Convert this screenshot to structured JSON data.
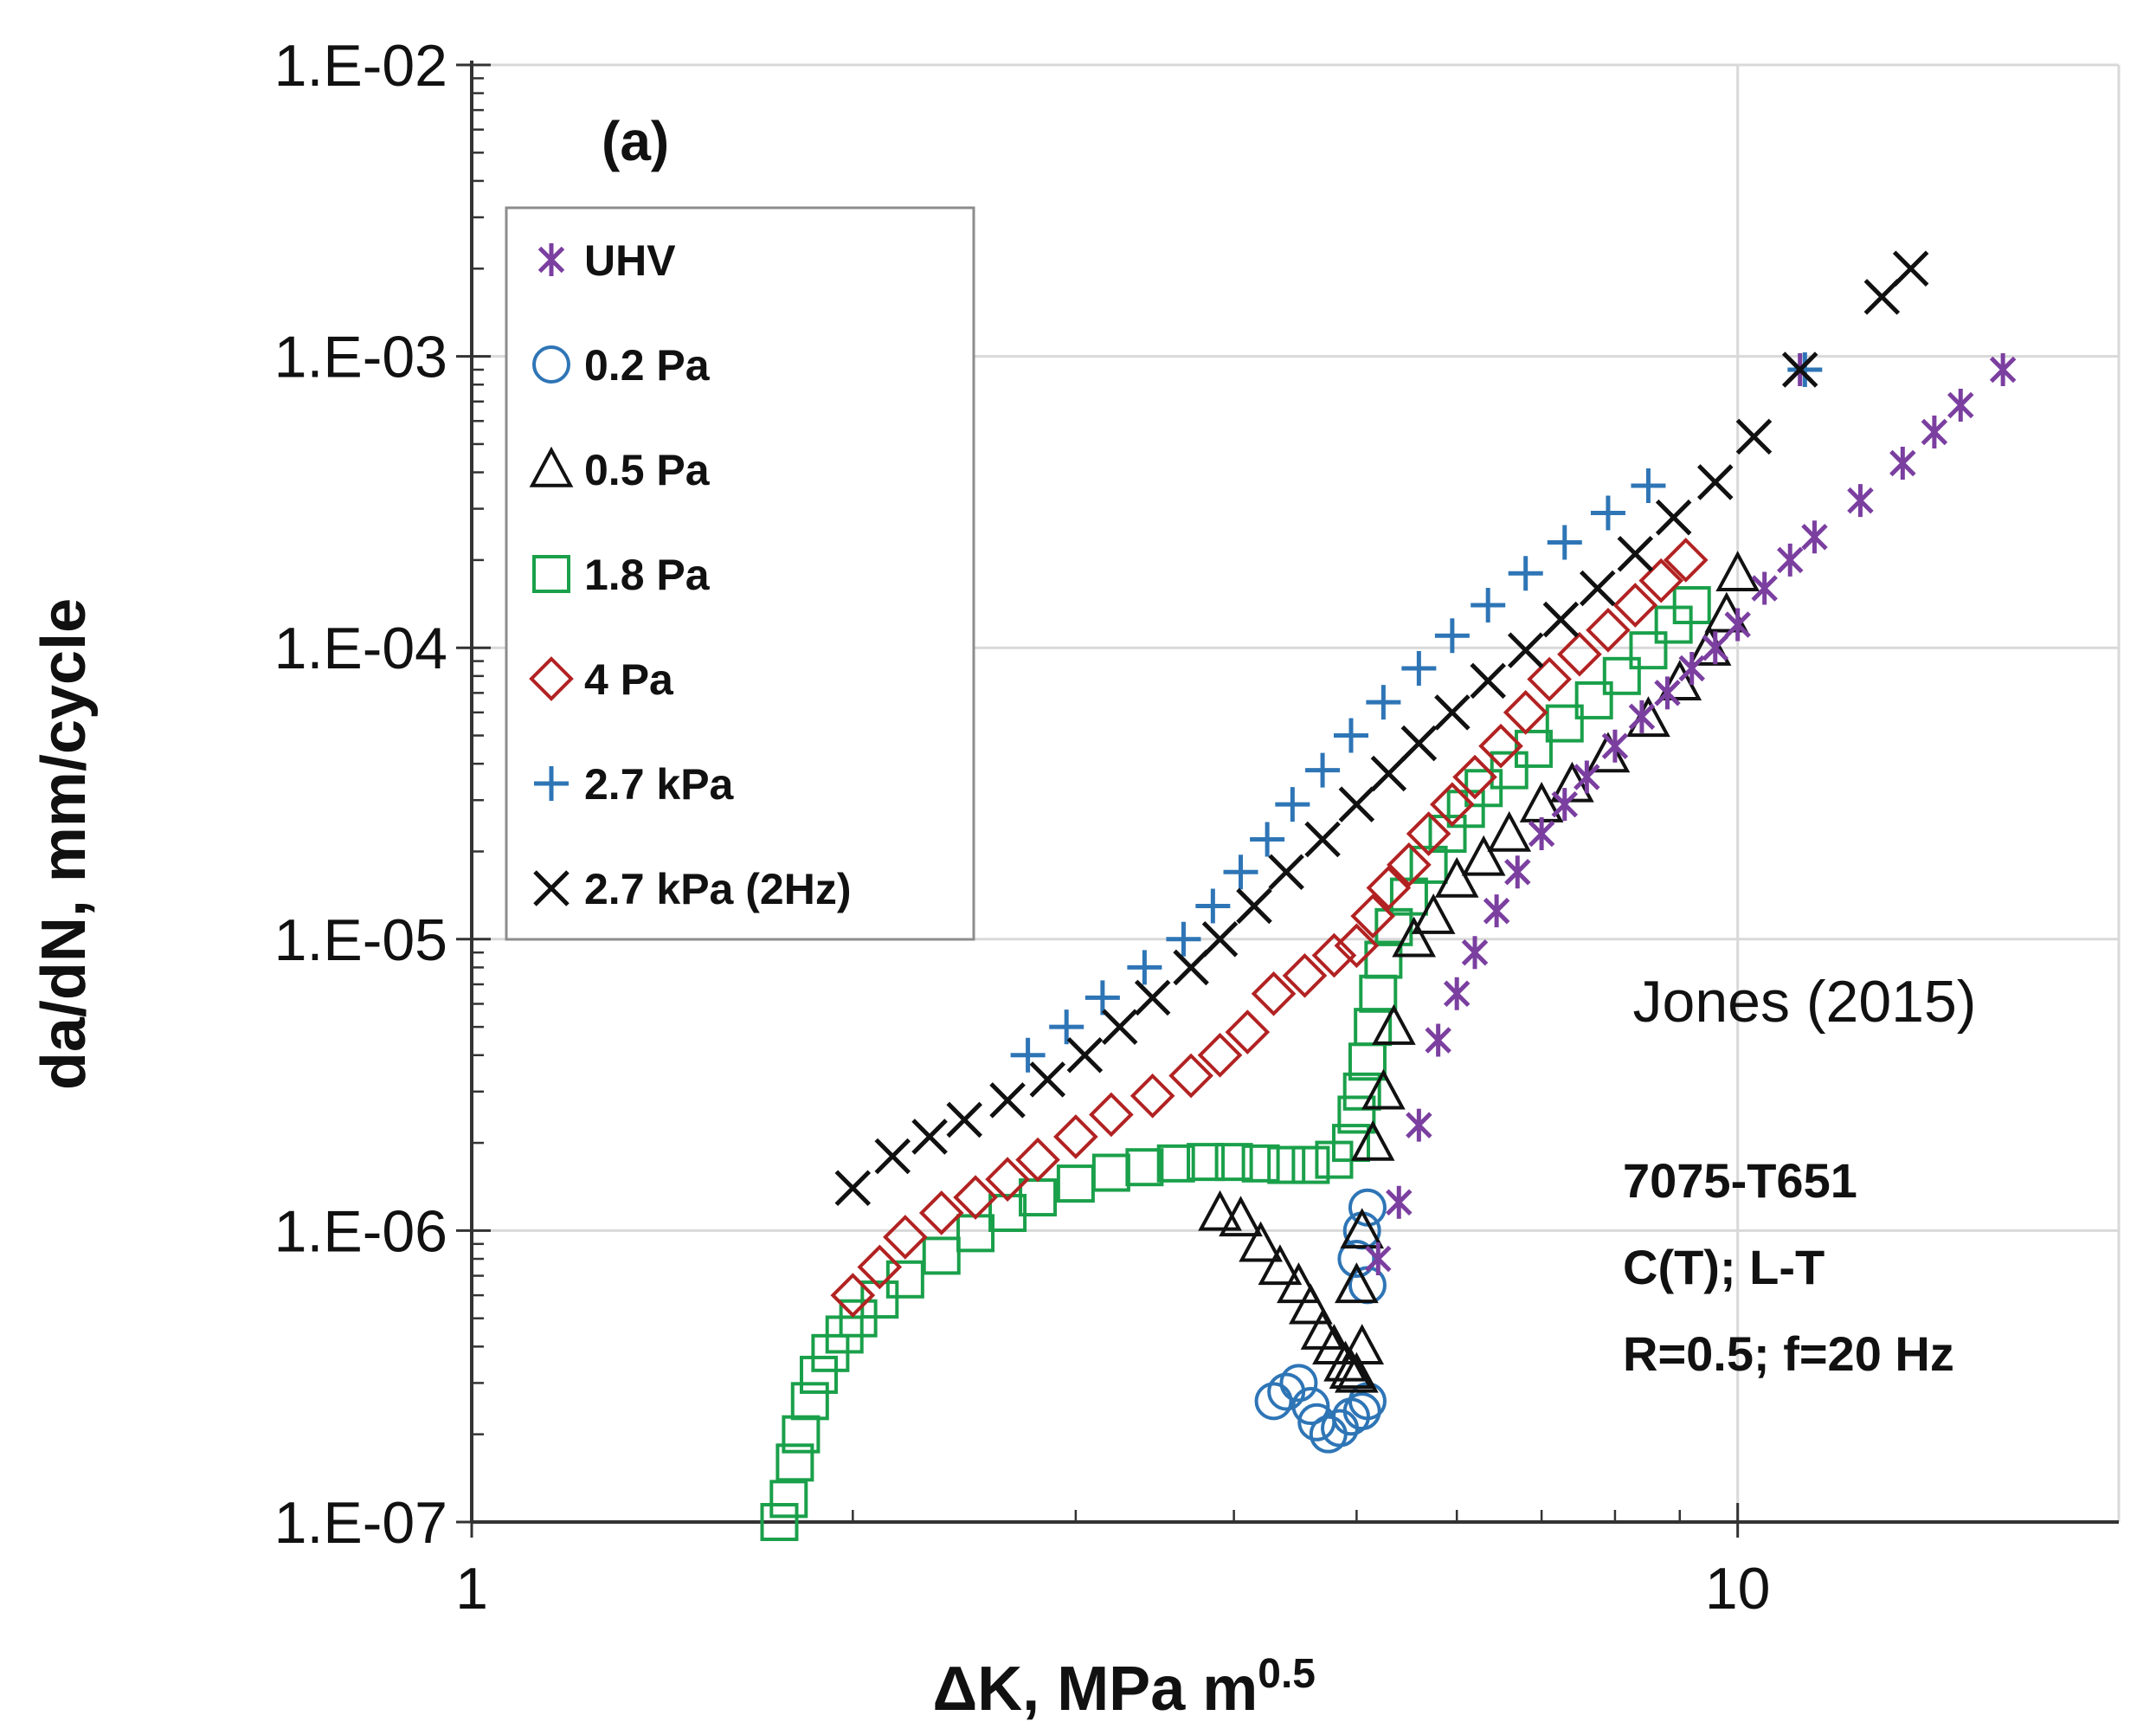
{
  "chart_data": {
    "type": "scatter",
    "panel_label": "(a)",
    "xlabel": "ΔK, MPa m",
    "xlabel_exponent": "0.5",
    "ylabel": "da/dN, mm/cycle",
    "x_scale": "log",
    "y_scale": "log",
    "xlim": [
      1,
      20
    ],
    "ylim": [
      1e-07,
      0.01
    ],
    "grid": true,
    "legend_position": "top-left",
    "x_ticks": [
      {
        "value": 1,
        "label": "1"
      },
      {
        "value": 10,
        "label": "10"
      }
    ],
    "y_ticks": [
      {
        "value": 1e-07,
        "label": "1.E-07"
      },
      {
        "value": 1e-06,
        "label": "1.E-06"
      },
      {
        "value": 1e-05,
        "label": "1.E-05"
      },
      {
        "value": 0.0001,
        "label": "1.E-04"
      },
      {
        "value": 0.001,
        "label": "1.E-03"
      },
      {
        "value": 0.01,
        "label": "1.E-02"
      }
    ],
    "annotation": "Jones (2015)",
    "specimen_lines": [
      "7075-T651",
      "C(T); L-T",
      "R=0.5; f=20 Hz"
    ],
    "series": [
      {
        "name": "UHV",
        "marker": "asterisk",
        "color": "#7b3fa0",
        "points": [
          [
            5.2,
            8e-07
          ],
          [
            5.4,
            1.25e-06
          ],
          [
            5.6,
            2.3e-06
          ],
          [
            5.8,
            4.5e-06
          ],
          [
            6.0,
            6.5e-06
          ],
          [
            6.2,
            9e-06
          ],
          [
            6.45,
            1.25e-05
          ],
          [
            6.7,
            1.7e-05
          ],
          [
            7.0,
            2.3e-05
          ],
          [
            7.3,
            2.9e-05
          ],
          [
            7.6,
            3.6e-05
          ],
          [
            8.0,
            4.6e-05
          ],
          [
            8.4,
            5.8e-05
          ],
          [
            8.8,
            7e-05
          ],
          [
            9.2,
            8.5e-05
          ],
          [
            9.6,
            0.0001
          ],
          [
            10.0,
            0.00012
          ],
          [
            10.5,
            0.00016
          ],
          [
            11.0,
            0.0002
          ],
          [
            11.5,
            0.00024
          ],
          [
            12.5,
            0.00032
          ],
          [
            13.5,
            0.00043
          ],
          [
            14.3,
            0.00055
          ],
          [
            15.0,
            0.00068
          ],
          [
            16.2,
            0.0009
          ],
          [
            11.2,
            0.0009
          ]
        ]
      },
      {
        "name": "0.2 Pa",
        "marker": "circle",
        "color": "#2e75b6",
        "points": [
          [
            4.3,
            2.6e-07
          ],
          [
            4.4,
            2.8e-07
          ],
          [
            4.5,
            3e-07
          ],
          [
            4.6,
            2.5e-07
          ],
          [
            4.65,
            2.2e-07
          ],
          [
            4.75,
            2e-07
          ],
          [
            4.85,
            2.1e-07
          ],
          [
            4.95,
            2.3e-07
          ],
          [
            5.05,
            2.4e-07
          ],
          [
            5.1,
            2.6e-07
          ],
          [
            5.0,
            8e-07
          ],
          [
            5.05,
            1e-06
          ],
          [
            5.1,
            1.2e-06
          ],
          [
            5.1,
            6.5e-07
          ]
        ]
      },
      {
        "name": "0.5 Pa",
        "marker": "triangle",
        "color": "#111111",
        "points": [
          [
            3.9,
            1.15e-06
          ],
          [
            4.05,
            1.1e-06
          ],
          [
            4.2,
            9e-07
          ],
          [
            4.35,
            7.5e-07
          ],
          [
            4.5,
            6.5e-07
          ],
          [
            4.6,
            5.5e-07
          ],
          [
            4.7,
            4.5e-07
          ],
          [
            4.8,
            4e-07
          ],
          [
            4.9,
            3.5e-07
          ],
          [
            4.95,
            3.3e-07
          ],
          [
            5.0,
            3.2e-07
          ],
          [
            5.05,
            4e-07
          ],
          [
            5.0,
            6.5e-07
          ],
          [
            5.05,
            1e-06
          ],
          [
            5.15,
            2e-06
          ],
          [
            5.25,
            3e-06
          ],
          [
            5.35,
            5e-06
          ],
          [
            5.55,
            1e-05
          ],
          [
            5.75,
            1.2e-05
          ],
          [
            6.0,
            1.6e-05
          ],
          [
            6.3,
            1.9e-05
          ],
          [
            6.6,
            2.3e-05
          ],
          [
            7.0,
            2.9e-05
          ],
          [
            7.4,
            3.4e-05
          ],
          [
            7.9,
            4.3e-05
          ],
          [
            8.5,
            5.7e-05
          ],
          [
            9.0,
            7.6e-05
          ],
          [
            9.5,
            0.0001
          ],
          [
            9.8,
            0.00013
          ],
          [
            10.0,
            0.00018
          ]
        ]
      },
      {
        "name": "1.8 Pa",
        "marker": "square",
        "color": "#1aa04a",
        "points": [
          [
            1.75,
            1e-07
          ],
          [
            1.78,
            1.2e-07
          ],
          [
            1.8,
            1.6e-07
          ],
          [
            1.82,
            2e-07
          ],
          [
            1.85,
            2.6e-07
          ],
          [
            1.88,
            3.2e-07
          ],
          [
            1.92,
            3.8e-07
          ],
          [
            1.97,
            4.4e-07
          ],
          [
            2.02,
            5e-07
          ],
          [
            2.1,
            5.8e-07
          ],
          [
            2.2,
            6.8e-07
          ],
          [
            2.35,
            8.2e-07
          ],
          [
            2.5,
            9.8e-07
          ],
          [
            2.65,
            1.15e-06
          ],
          [
            2.8,
            1.3e-06
          ],
          [
            3.0,
            1.45e-06
          ],
          [
            3.2,
            1.58e-06
          ],
          [
            3.4,
            1.65e-06
          ],
          [
            3.6,
            1.7e-06
          ],
          [
            3.8,
            1.72e-06
          ],
          [
            4.0,
            1.72e-06
          ],
          [
            4.2,
            1.7e-06
          ],
          [
            4.4,
            1.68e-06
          ],
          [
            4.6,
            1.68e-06
          ],
          [
            4.8,
            1.75e-06
          ],
          [
            4.95,
            2e-06
          ],
          [
            5.0,
            2.5e-06
          ],
          [
            5.05,
            3e-06
          ],
          [
            5.1,
            3.8e-06
          ],
          [
            5.15,
            5e-06
          ],
          [
            5.2,
            6.5e-06
          ],
          [
            5.25,
            8.5e-06
          ],
          [
            5.35,
            1.1e-05
          ],
          [
            5.5,
            1.4e-05
          ],
          [
            5.7,
            1.8e-05
          ],
          [
            5.9,
            2.3e-05
          ],
          [
            6.1,
            2.8e-05
          ],
          [
            6.3,
            3.3e-05
          ],
          [
            6.6,
            3.8e-05
          ],
          [
            6.9,
            4.5e-05
          ],
          [
            7.3,
            5.5e-05
          ],
          [
            7.7,
            6.6e-05
          ],
          [
            8.1,
            8e-05
          ],
          [
            8.5,
            9.8e-05
          ],
          [
            8.9,
            0.00012
          ],
          [
            9.2,
            0.00014
          ]
        ]
      },
      {
        "name": "4 Pa",
        "marker": "diamond",
        "color": "#b22222",
        "points": [
          [
            2.0,
            6e-07
          ],
          [
            2.1,
            7.5e-07
          ],
          [
            2.2,
            9.5e-07
          ],
          [
            2.35,
            1.15e-06
          ],
          [
            2.5,
            1.3e-06
          ],
          [
            2.65,
            1.5e-06
          ],
          [
            2.8,
            1.75e-06
          ],
          [
            3.0,
            2.1e-06
          ],
          [
            3.2,
            2.5e-06
          ],
          [
            3.45,
            2.9e-06
          ],
          [
            3.7,
            3.4e-06
          ],
          [
            3.9,
            4e-06
          ],
          [
            4.1,
            4.8e-06
          ],
          [
            4.3,
            6.5e-06
          ],
          [
            4.55,
            7.5e-06
          ],
          [
            4.8,
            8.8e-06
          ],
          [
            5.0,
            9.5e-06
          ],
          [
            5.15,
            1.2e-05
          ],
          [
            5.3,
            1.5e-05
          ],
          [
            5.5,
            1.8e-05
          ],
          [
            5.7,
            2.3e-05
          ],
          [
            5.95,
            2.9e-05
          ],
          [
            6.2,
            3.6e-05
          ],
          [
            6.5,
            4.6e-05
          ],
          [
            6.8,
            6e-05
          ],
          [
            7.1,
            7.8e-05
          ],
          [
            7.5,
            9.5e-05
          ],
          [
            7.9,
            0.000115
          ],
          [
            8.3,
            0.00014
          ],
          [
            8.7,
            0.00017
          ],
          [
            9.1,
            0.0002
          ]
        ]
      },
      {
        "name": "2.7 kPa",
        "marker": "plus",
        "color": "#2e75b6",
        "points": [
          [
            2.75,
            4e-06
          ],
          [
            2.95,
            5e-06
          ],
          [
            3.15,
            6.3e-06
          ],
          [
            3.4,
            8e-06
          ],
          [
            3.65,
            1e-05
          ],
          [
            3.85,
            1.3e-05
          ],
          [
            4.05,
            1.7e-05
          ],
          [
            4.25,
            2.2e-05
          ],
          [
            4.45,
            2.9e-05
          ],
          [
            4.7,
            3.8e-05
          ],
          [
            4.95,
            5e-05
          ],
          [
            5.25,
            6.5e-05
          ],
          [
            5.6,
            8.5e-05
          ],
          [
            5.95,
            0.00011
          ],
          [
            6.35,
            0.00014
          ],
          [
            6.8,
            0.00018
          ],
          [
            7.3,
            0.00023
          ],
          [
            7.9,
            0.00029
          ],
          [
            8.5,
            0.00036
          ],
          [
            11.3,
            0.0009
          ]
        ]
      },
      {
        "name": "2.7 kPa (2Hz)",
        "marker": "x",
        "color": "#111111",
        "points": [
          [
            2.0,
            1.4e-06
          ],
          [
            2.15,
            1.8e-06
          ],
          [
            2.3,
            2.1e-06
          ],
          [
            2.45,
            2.4e-06
          ],
          [
            2.65,
            2.8e-06
          ],
          [
            2.85,
            3.3e-06
          ],
          [
            3.05,
            4e-06
          ],
          [
            3.25,
            5e-06
          ],
          [
            3.45,
            6.3e-06
          ],
          [
            3.7,
            8e-06
          ],
          [
            3.9,
            1e-05
          ],
          [
            4.15,
            1.3e-05
          ],
          [
            4.4,
            1.7e-05
          ],
          [
            4.7,
            2.2e-05
          ],
          [
            5.0,
            2.9e-05
          ],
          [
            5.3,
            3.7e-05
          ],
          [
            5.6,
            4.7e-05
          ],
          [
            5.95,
            6e-05
          ],
          [
            6.35,
            7.7e-05
          ],
          [
            6.8,
            9.8e-05
          ],
          [
            7.25,
            0.000125
          ],
          [
            7.75,
            0.00016
          ],
          [
            8.3,
            0.00021
          ],
          [
            8.9,
            0.00028
          ],
          [
            9.6,
            0.00037
          ],
          [
            10.3,
            0.00053
          ],
          [
            11.2,
            0.0009
          ],
          [
            13.0,
            0.0016
          ],
          [
            13.7,
            0.002
          ]
        ]
      }
    ]
  }
}
